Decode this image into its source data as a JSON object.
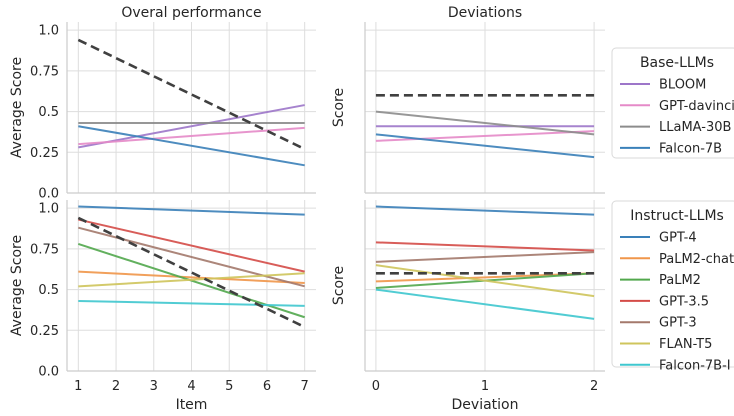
{
  "colors": {
    "blue": "#3a80b9",
    "orange": "#f0964a",
    "green": "#52a84d",
    "red": "#d44c48",
    "brown": "#a4796c",
    "olive": "#cfc55c",
    "cyan": "#3fc7cf",
    "purple": "#9d76c9",
    "pink": "#e58ac8",
    "gray": "#8c8c8c",
    "dashed": "#404040"
  },
  "chart_data": [
    {
      "type": "line",
      "panel": "top-left",
      "title": "Overal performance",
      "xlabel": "",
      "ylabel": "Average Score",
      "x": [
        1,
        7
      ],
      "xlim": [
        0.7,
        7.3
      ],
      "ylim": [
        0,
        1.05
      ],
      "xticks": [],
      "yticks": [
        "0.0",
        "0.25",
        "0.5",
        "0.75",
        "1.0"
      ],
      "grid": true,
      "series": [
        {
          "name": "BLOOM",
          "color": "purple",
          "values": [
            0.28,
            0.54
          ]
        },
        {
          "name": "GPT-davinci",
          "color": "pink",
          "values": [
            0.3,
            0.4
          ]
        },
        {
          "name": "LLaMA-30B",
          "color": "gray",
          "values": [
            0.43,
            0.43
          ]
        },
        {
          "name": "Falcon-7B",
          "color": "blue",
          "values": [
            0.41,
            0.17
          ]
        },
        {
          "color": "dashed",
          "dashed": true,
          "values": [
            0.94,
            0.27
          ]
        }
      ]
    },
    {
      "type": "line",
      "panel": "top-right",
      "title": "Deviations",
      "xlabel": "",
      "ylabel": "Score",
      "x": [
        0,
        2
      ],
      "xlim": [
        -0.1,
        2.1
      ],
      "ylim": [
        0,
        1.05
      ],
      "xticks": [],
      "yticks": [],
      "grid": true,
      "series": [
        {
          "name": "BLOOM",
          "color": "purple",
          "values": [
            0.41,
            0.41
          ]
        },
        {
          "name": "GPT-davinci",
          "color": "pink",
          "values": [
            0.32,
            0.38
          ]
        },
        {
          "name": "LLaMA-30B",
          "color": "gray",
          "values": [
            0.5,
            0.36
          ]
        },
        {
          "name": "Falcon-7B",
          "color": "blue",
          "values": [
            0.36,
            0.22
          ]
        },
        {
          "color": "dashed",
          "dashed": true,
          "values": [
            0.6,
            0.6
          ]
        }
      ]
    },
    {
      "type": "line",
      "panel": "bottom-left",
      "title": "",
      "xlabel": "Item",
      "ylabel": "Average Score",
      "x": [
        1,
        7
      ],
      "xlim": [
        0.7,
        7.3
      ],
      "ylim": [
        0,
        1.05
      ],
      "xticks": [
        "1",
        "2",
        "3",
        "4",
        "5",
        "6",
        "7"
      ],
      "xtick_values": [
        1,
        2,
        3,
        4,
        5,
        6,
        7
      ],
      "yticks": [
        "0.0",
        "0.25",
        "0.5",
        "0.75",
        "1.0"
      ],
      "grid": true,
      "series": [
        {
          "name": "GPT-4",
          "color": "blue",
          "values": [
            1.01,
            0.96
          ]
        },
        {
          "name": "PaLM2-chat",
          "color": "orange",
          "values": [
            0.61,
            0.54
          ]
        },
        {
          "name": "PaLM2",
          "color": "green",
          "values": [
            0.78,
            0.33
          ]
        },
        {
          "name": "GPT-3.5",
          "color": "red",
          "values": [
            0.93,
            0.61
          ]
        },
        {
          "name": "GPT-3",
          "color": "brown",
          "values": [
            0.88,
            0.52
          ]
        },
        {
          "name": "FLAN-T5",
          "color": "olive",
          "values": [
            0.52,
            0.6
          ]
        },
        {
          "name": "Falcon-7B-I",
          "color": "cyan",
          "values": [
            0.43,
            0.4
          ]
        },
        {
          "color": "dashed",
          "dashed": true,
          "values": [
            0.94,
            0.27
          ]
        }
      ]
    },
    {
      "type": "line",
      "panel": "bottom-right",
      "title": "",
      "xlabel": "Deviation",
      "ylabel": "Score",
      "x": [
        0,
        2
      ],
      "xlim": [
        -0.1,
        2.1
      ],
      "ylim": [
        0,
        1.05
      ],
      "xticks": [
        "0",
        "1",
        "2"
      ],
      "xtick_values": [
        0,
        1,
        2
      ],
      "yticks": [],
      "grid": true,
      "series": [
        {
          "name": "GPT-4",
          "color": "blue",
          "values": [
            1.01,
            0.96
          ]
        },
        {
          "name": "PaLM2-chat",
          "color": "orange",
          "values": [
            0.55,
            0.6
          ]
        },
        {
          "name": "PaLM2",
          "color": "green",
          "values": [
            0.51,
            0.6
          ]
        },
        {
          "name": "GPT-3.5",
          "color": "red",
          "values": [
            0.79,
            0.74
          ]
        },
        {
          "name": "GPT-3",
          "color": "brown",
          "values": [
            0.67,
            0.73
          ]
        },
        {
          "name": "FLAN-T5",
          "color": "olive",
          "values": [
            0.65,
            0.46
          ]
        },
        {
          "name": "Falcon-7B-I",
          "color": "cyan",
          "values": [
            0.5,
            0.32
          ]
        },
        {
          "color": "dashed",
          "dashed": true,
          "values": [
            0.6,
            0.6
          ]
        }
      ]
    }
  ],
  "legends": [
    {
      "title": "Base-LLMs",
      "items": [
        {
          "label": "BLOOM",
          "color": "purple"
        },
        {
          "label": "GPT-davinci",
          "color": "pink"
        },
        {
          "label": "LLaMA-30B",
          "color": "gray"
        },
        {
          "label": "Falcon-7B",
          "color": "blue"
        }
      ]
    },
    {
      "title": "Instruct-LLMs",
      "items": [
        {
          "label": "GPT-4",
          "color": "blue"
        },
        {
          "label": "PaLM2-chat",
          "color": "orange"
        },
        {
          "label": "PaLM2",
          "color": "green"
        },
        {
          "label": "GPT-3.5",
          "color": "red"
        },
        {
          "label": "GPT-3",
          "color": "brown"
        },
        {
          "label": "FLAN-T5",
          "color": "olive"
        },
        {
          "label": "Falcon-7B-I",
          "color": "cyan"
        }
      ]
    }
  ]
}
